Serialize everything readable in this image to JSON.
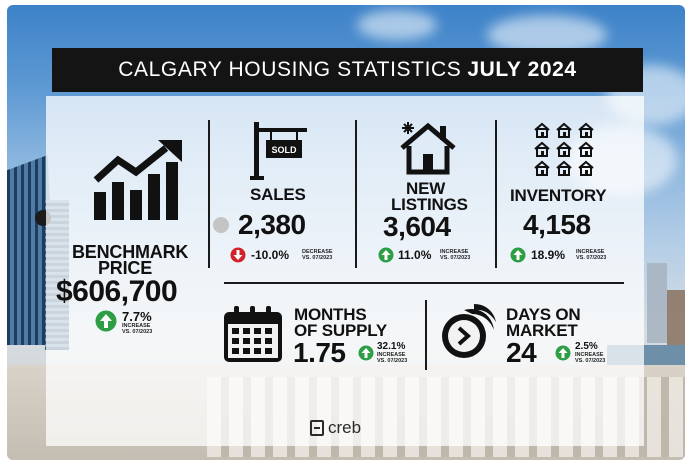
{
  "title": {
    "regular": "CALGARY HOUSING STATISTICS",
    "bold": "JULY 2024"
  },
  "benchmark": {
    "label_line1": "BENCHMARK",
    "label_line2": "PRICE",
    "value": "$606,700",
    "change": "7.7%",
    "direction": "up",
    "note_line1": "INCREASE",
    "note_line2": "VS. 07/2023"
  },
  "sales": {
    "sign_text": "SOLD",
    "label": "SALES",
    "value": "2,380",
    "change": "-10.0%",
    "direction": "down",
    "note_line1": "DECREASE",
    "note_line2": "VS. 07/2023"
  },
  "new_listings": {
    "label_line1": "NEW",
    "label_line2": "LISTINGS",
    "value": "3,604",
    "change": "11.0%",
    "direction": "up",
    "note_line1": "INCREASE",
    "note_line2": "VS. 07/2023"
  },
  "inventory": {
    "label": "INVENTORY",
    "value": "4,158",
    "change": "18.9%",
    "direction": "up",
    "note_line1": "INCREASE",
    "note_line2": "VS. 07/2023"
  },
  "months_of_supply": {
    "label_line1": "MONTHS",
    "label_line2": "OF SUPPLY",
    "value": "1.75",
    "change": "32.1%",
    "direction": "up",
    "note_line1": "INCREASE",
    "note_line2": "VS. 07/2023"
  },
  "days_on_market": {
    "label_line1": "DAYS ON",
    "label_line2": "MARKET",
    "value": "24",
    "change": "2.5%",
    "direction": "up",
    "note_line1": "INCREASE",
    "note_line2": "VS. 07/2023"
  },
  "logo": {
    "text": "creb"
  },
  "icons": [
    "growth-chart-icon",
    "sold-sign-icon",
    "new-house-icon",
    "houses-grid-icon",
    "calendar-icon",
    "stopwatch-icon"
  ],
  "colors": {
    "up": "#2e9e45",
    "down": "#d2232a",
    "title_bg": "#141414"
  }
}
